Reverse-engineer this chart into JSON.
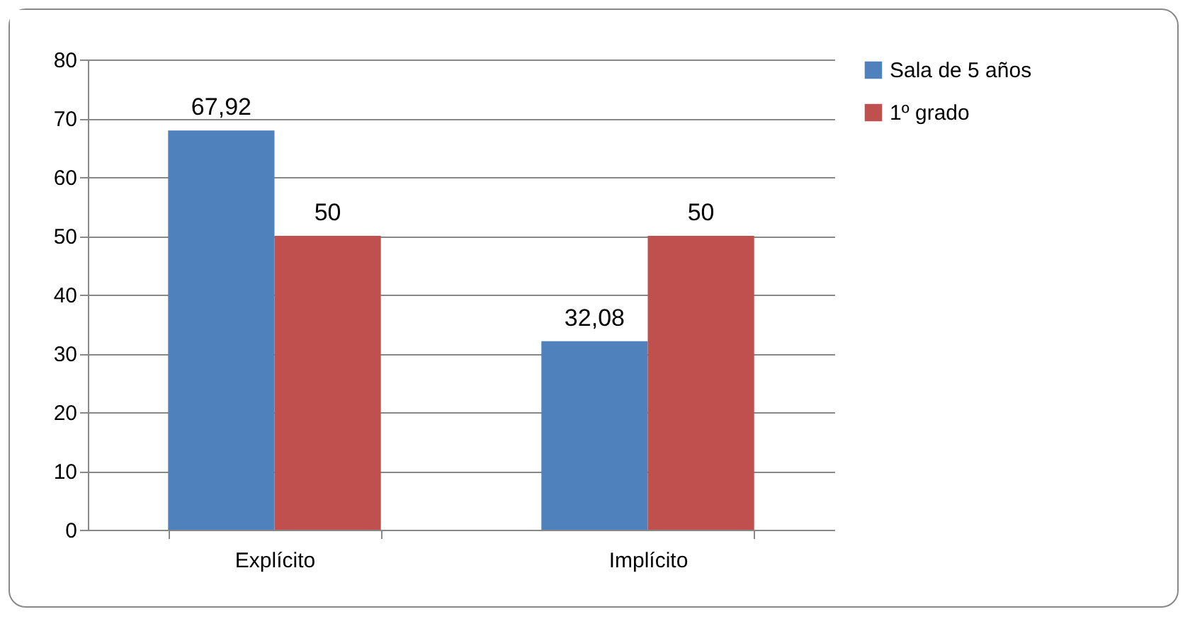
{
  "chart_data": {
    "type": "bar",
    "categories": [
      "Explícito",
      "Implícito"
    ],
    "series": [
      {
        "name": "Sala de 5 años",
        "color": "#4f81bd",
        "values": [
          67.92,
          32.08
        ],
        "value_labels": [
          "67,92",
          "32,08"
        ]
      },
      {
        "name": "1º grado",
        "color": "#c0504d",
        "values": [
          50,
          50
        ],
        "value_labels": [
          "50",
          "50"
        ]
      }
    ],
    "ylim": [
      0,
      80
    ],
    "yticks": [
      0,
      10,
      20,
      30,
      40,
      50,
      60,
      70,
      80
    ],
    "grid": "y",
    "legend": "right"
  }
}
